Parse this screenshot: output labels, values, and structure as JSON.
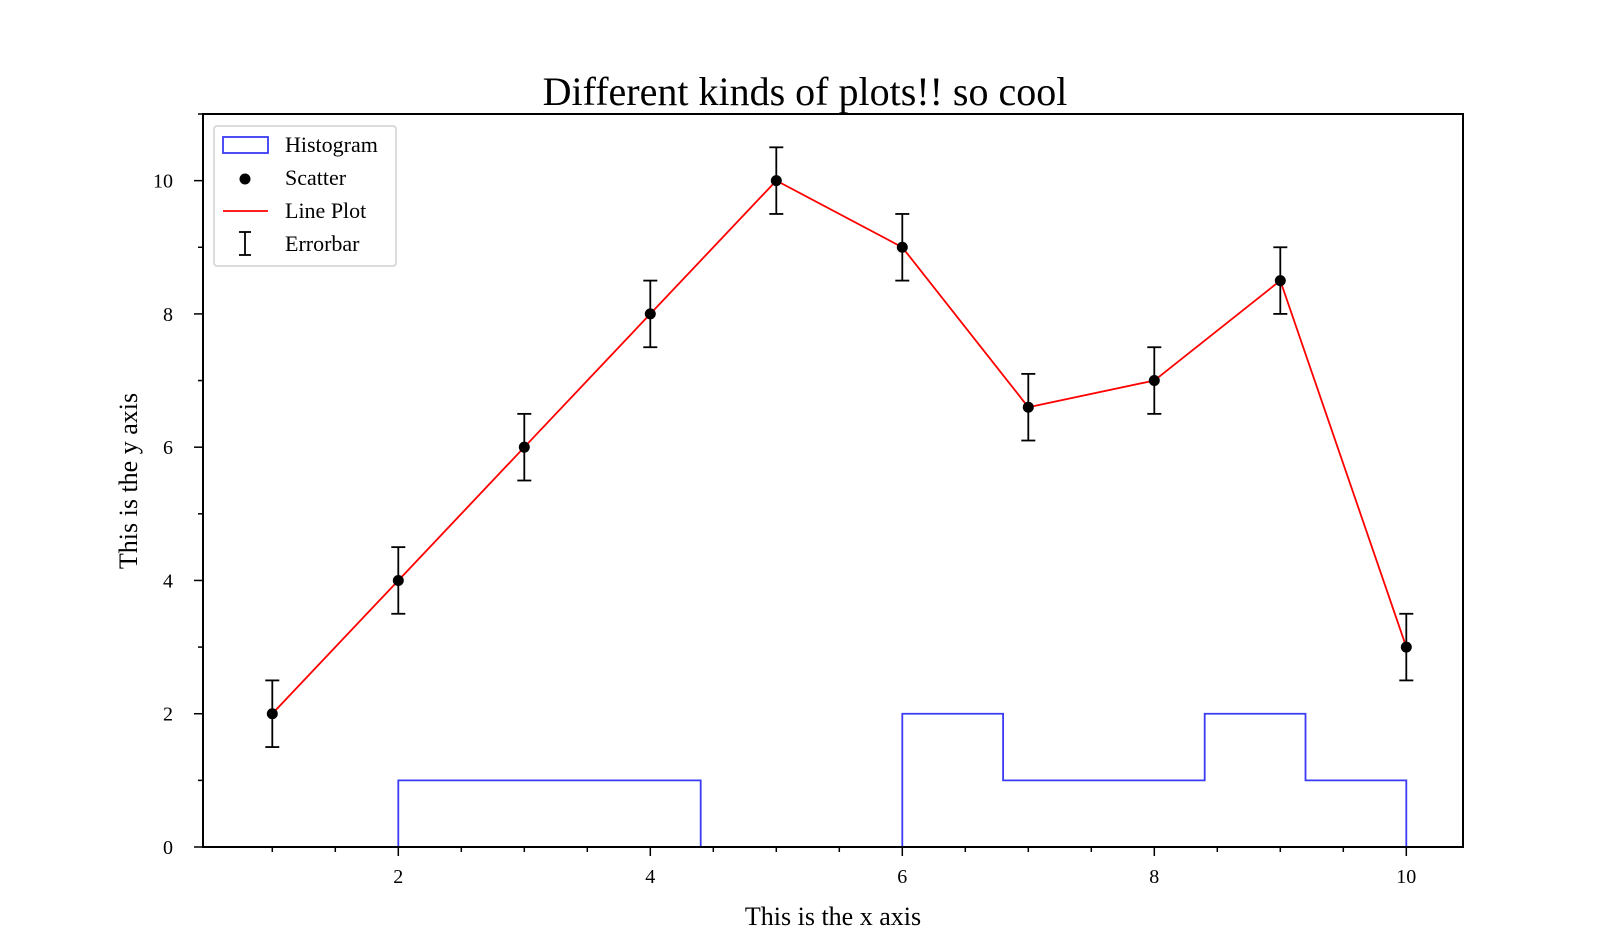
{
  "chart_data": {
    "type": "line",
    "title": "Different kinds of plots!! so cool",
    "xlabel": "This is the x axis",
    "ylabel": "This is the y axis",
    "xlim": [
      0.45,
      10.45
    ],
    "ylim": [
      0,
      11
    ],
    "x_ticks": [
      2,
      4,
      6,
      8,
      10
    ],
    "x_tick_labels": [
      "2",
      "4",
      "6",
      "8",
      "10"
    ],
    "y_ticks": [
      0,
      2,
      4,
      6,
      8,
      10
    ],
    "y_tick_labels": [
      "0",
      "2",
      "4",
      "6",
      "8",
      "10"
    ],
    "grid": false,
    "legend_position": "top-left",
    "legend": [
      "Histogram",
      "Scatter",
      "Line Plot",
      "Errorbar"
    ],
    "colors": {
      "histogram": "#3b3bf5",
      "scatter": "#000000",
      "line": "#ff0000",
      "errorbar": "#000000"
    },
    "line": {
      "x": [
        1,
        2,
        3,
        4,
        5,
        6,
        7,
        8,
        9,
        10
      ],
      "y": [
        2,
        4,
        6,
        8,
        10,
        9,
        6.6,
        7,
        8.5,
        3
      ]
    },
    "errorbar": {
      "yerr": 0.5
    },
    "histogram": {
      "bin_edges": [
        2,
        2.8,
        3.6,
        4.4,
        5.2,
        6,
        6.8,
        7.6,
        8.4,
        9.2,
        10
      ],
      "counts": [
        1,
        1,
        1,
        0,
        0,
        2,
        1,
        1,
        2,
        1
      ]
    }
  }
}
